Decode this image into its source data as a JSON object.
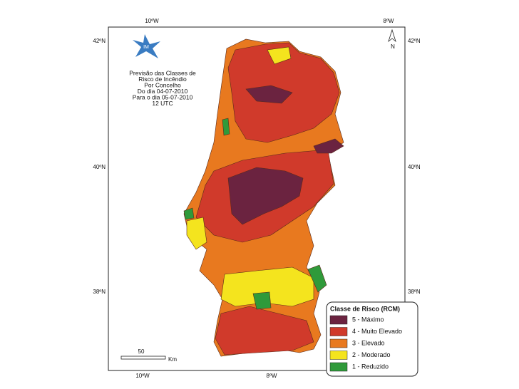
{
  "map": {
    "title_lines": [
      "Previsão das Classes de",
      "Risco de Incêndio",
      "Por Concelho",
      "Do dia 04-07-2010",
      "Para o dia 05-07-2010",
      "12 UTC"
    ],
    "top_labels": [
      "10ºW",
      "8ºW"
    ],
    "bottom_labels": [
      "10ºW",
      "8ºW"
    ],
    "left_labels": [
      "42ºN",
      "40ºN",
      "38ºN"
    ],
    "right_labels": [
      "42ºN",
      "40ºN",
      "38ºN"
    ],
    "logo_text": "IM",
    "north": "N",
    "scale": {
      "distance": "50",
      "unit": "Km"
    }
  },
  "legend": {
    "title": "Classe de Risco (RCM)",
    "items": [
      {
        "label": "5 - Máximo",
        "color": "#6b2340"
      },
      {
        "label": "4 - Muito Elevado",
        "color": "#d03a2b"
      },
      {
        "label": "3 - Elevado",
        "color": "#e8791f"
      },
      {
        "label": "2 - Moderado",
        "color": "#f4e41e"
      },
      {
        "label": "1 - Reduzido",
        "color": "#2f9a3a"
      }
    ]
  }
}
